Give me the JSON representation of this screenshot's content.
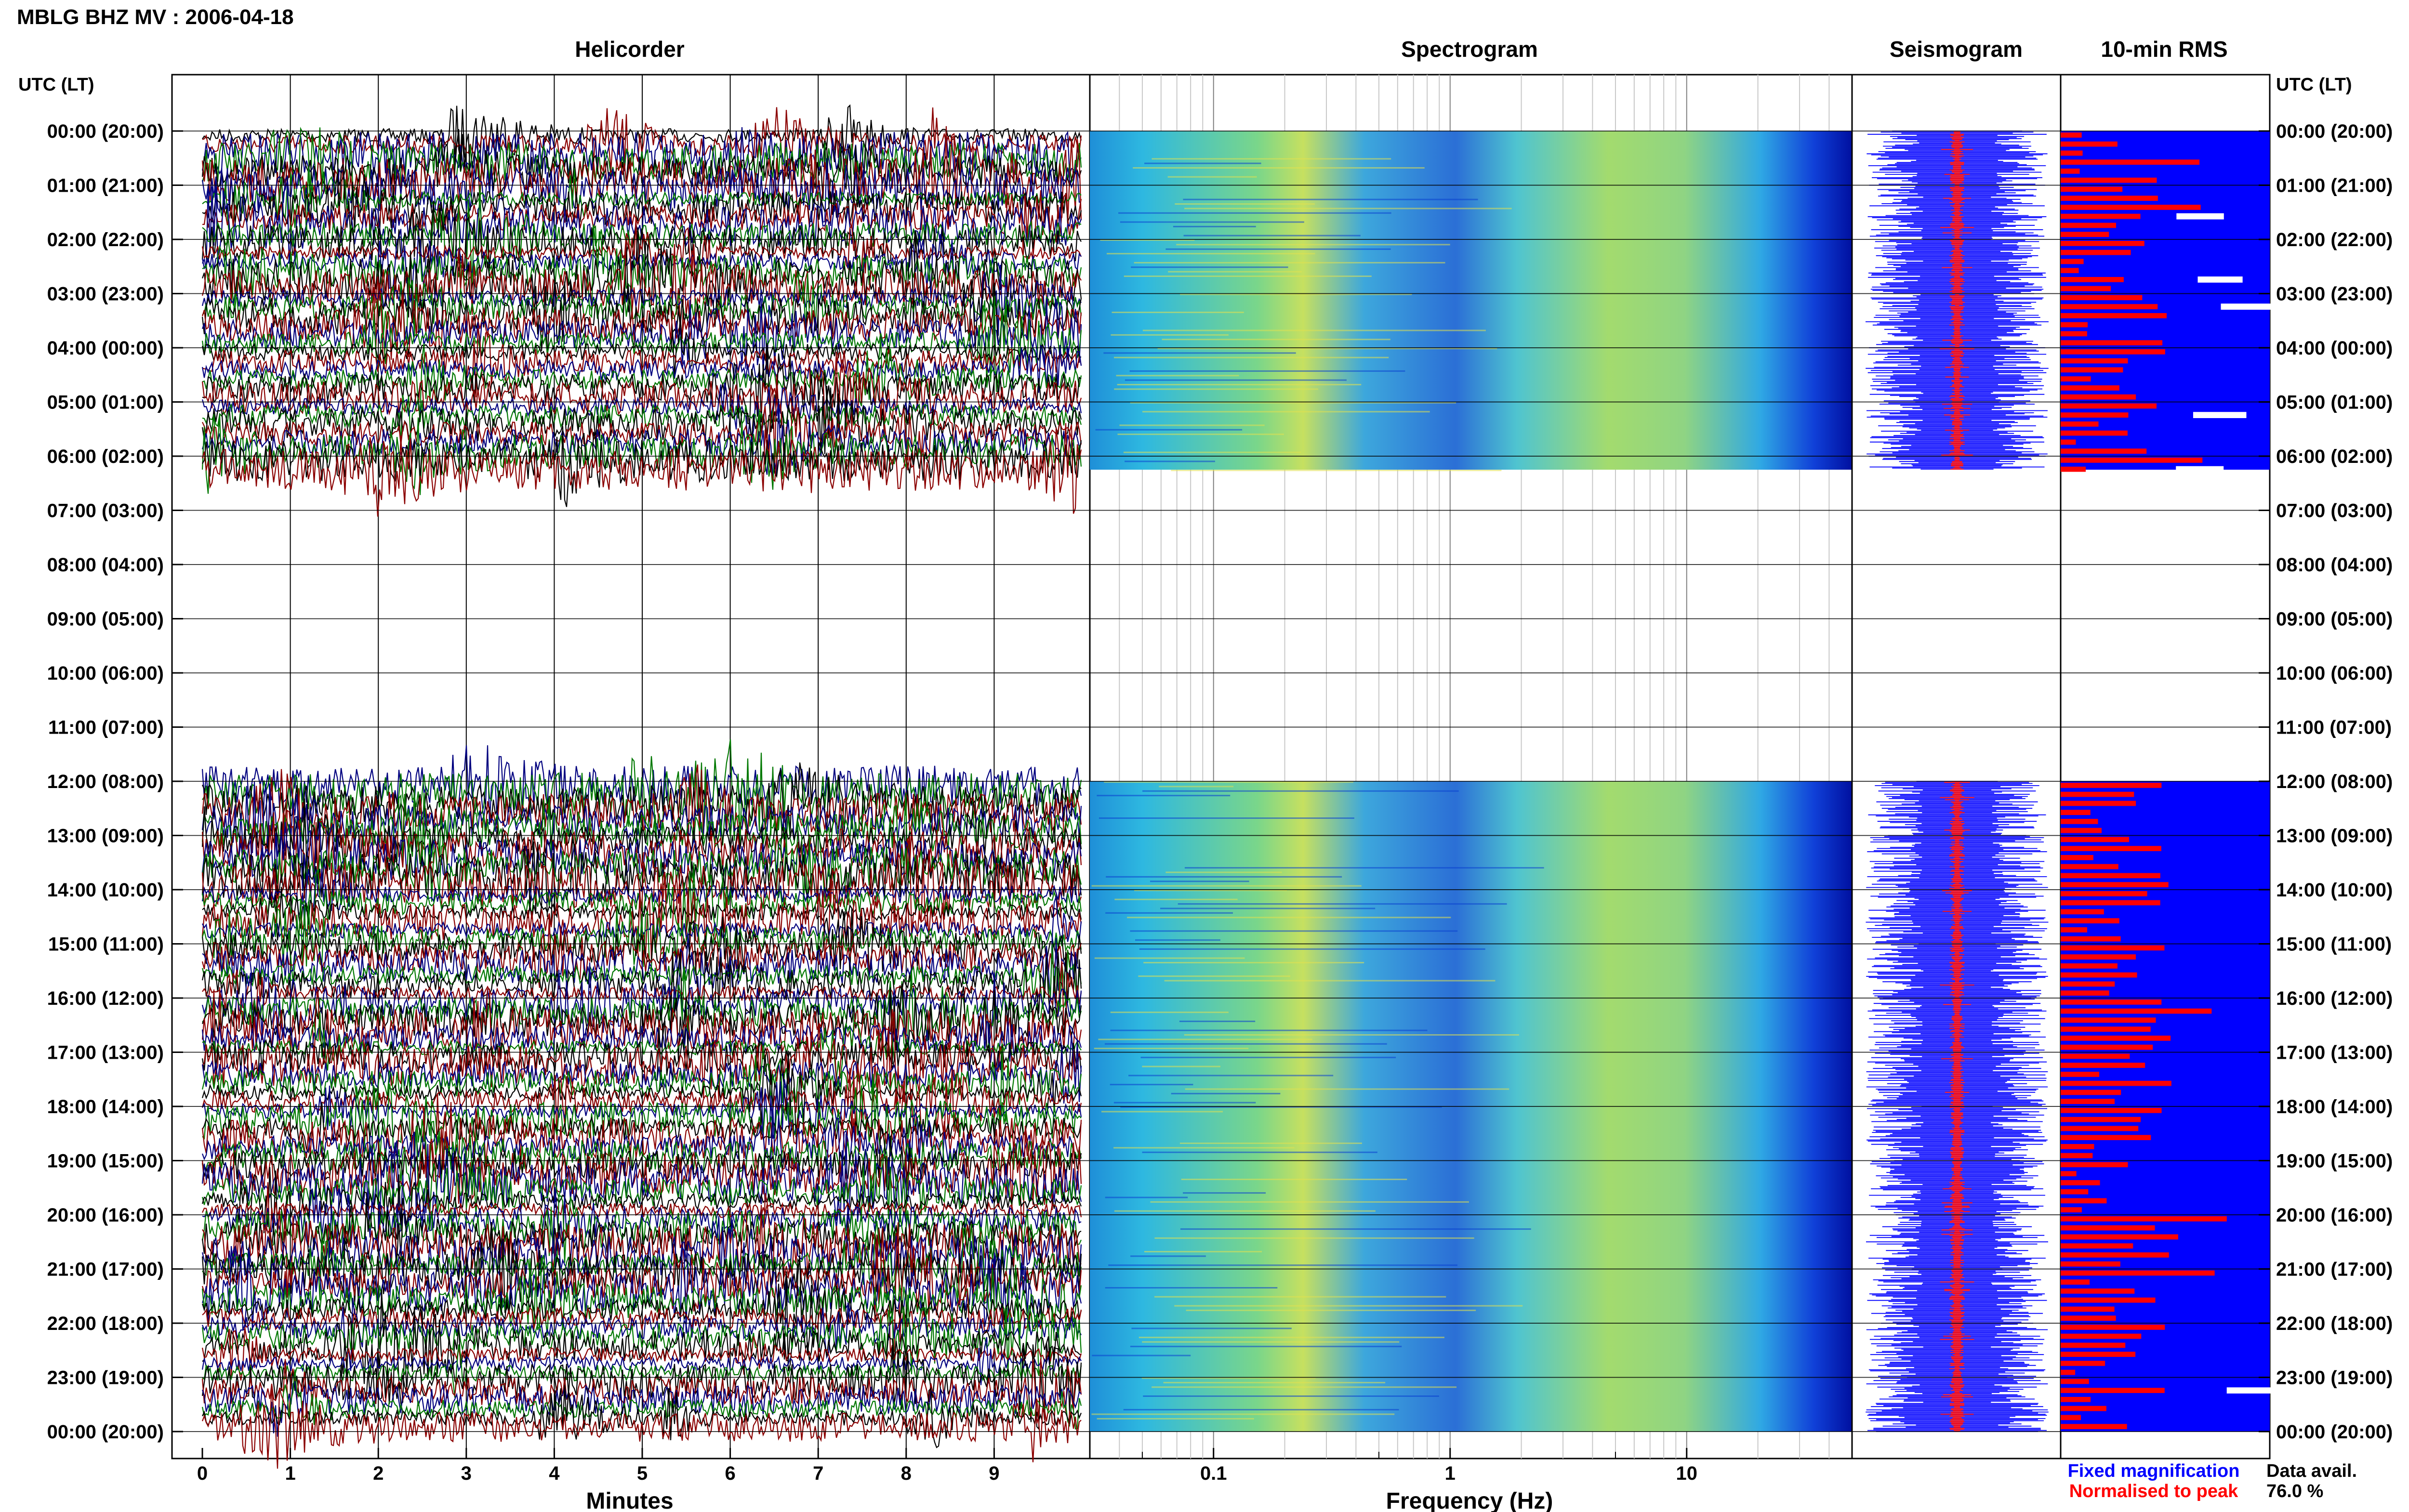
{
  "header": {
    "title": "MBLG BHZ MV : 2006-04-18",
    "panel_titles": {
      "helicorder": "Helicorder",
      "spectrogram": "Spectrogram",
      "seismogram": "Seismogram",
      "rms": "10-min RMS"
    },
    "axis_header_left": "UTC (LT)",
    "axis_header_right": "UTC (LT)"
  },
  "footer": {
    "legend_fixed": "Fixed magnification",
    "legend_normalised": "Normalised to peak",
    "data_avail_label": "Data avail.",
    "data_avail_value": "76.0 %"
  },
  "colors": {
    "trace_cycle": [
      "#000000",
      "#8b0000",
      "#00007f",
      "#007800"
    ],
    "fixed_magnification": "#0000ff",
    "normalised_to_peak": "#ff0000"
  },
  "chart_data": [
    {
      "type": "line",
      "name": "helicorder",
      "title": "Helicorder",
      "xlabel": "Minutes",
      "xlim": [
        0,
        10
      ],
      "x_ticks": [
        "0",
        "1",
        "2",
        "3",
        "4",
        "5",
        "6",
        "7",
        "8",
        "9"
      ],
      "y_tick_labels": [
        "00:00 (20:00)",
        "01:00 (21:00)",
        "02:00 (22:00)",
        "03:00 (23:00)",
        "04:00 (00:00)",
        "05:00 (01:00)",
        "06:00 (02:00)",
        "07:00 (03:00)",
        "08:00 (04:00)",
        "09:00 (05:00)",
        "10:00 (06:00)",
        "11:00 (07:00)",
        "12:00 (08:00)",
        "13:00 (09:00)",
        "14:00 (10:00)",
        "15:00 (11:00)",
        "16:00 (12:00)",
        "17:00 (13:00)",
        "18:00 (14:00)",
        "19:00 (15:00)",
        "20:00 (16:00)",
        "21:00 (17:00)",
        "22:00 (18:00)",
        "23:00 (19:00)",
        "00:00 (20:00)"
      ],
      "lines_per_hour": 6,
      "data_segments_utc_hours": [
        [
          0,
          6.25
        ],
        [
          12,
          24
        ]
      ]
    },
    {
      "type": "heatmap",
      "name": "spectrogram",
      "title": "Spectrogram",
      "xlabel": "Frequency (Hz)",
      "x_scale": "log",
      "xlim": [
        0.03,
        50
      ],
      "x_ticks": [
        "0.1",
        "1",
        "10"
      ],
      "colormap": "jet",
      "data_segments_utc_hours": [
        [
          0,
          6.25
        ],
        [
          12,
          24
        ]
      ]
    },
    {
      "type": "line",
      "name": "seismogram",
      "title": "Seismogram",
      "series": [
        "Fixed magnification",
        "Normalised to peak"
      ],
      "data_segments_utc_hours": [
        [
          0,
          6.25
        ],
        [
          12,
          24
        ]
      ]
    },
    {
      "type": "bar",
      "name": "rms",
      "title": "10-min RMS",
      "orientation": "horizontal",
      "bin_minutes": 10,
      "series": [
        "Fixed magnification",
        "Normalised to peak"
      ],
      "data_segments_utc_hours": [
        [
          0,
          6.25
        ],
        [
          12,
          24
        ]
      ]
    }
  ]
}
